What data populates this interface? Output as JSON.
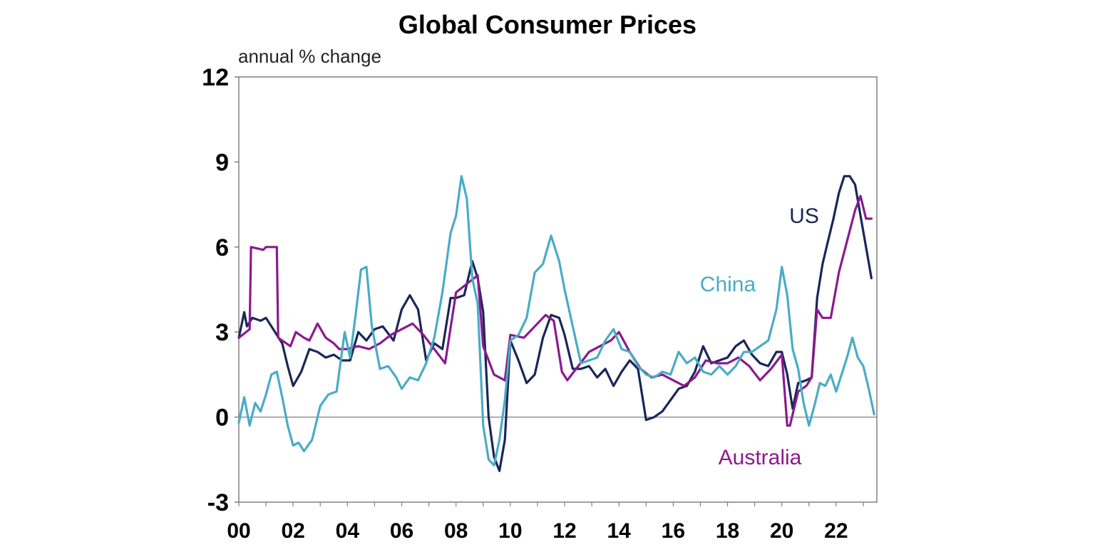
{
  "chart_data": {
    "type": "line",
    "title": "Global Consumer Prices",
    "ylabel": "annual % change",
    "xlabel": "",
    "ylim": [
      -3,
      12
    ],
    "xlim": [
      2000,
      2023.5
    ],
    "yticks": [
      12,
      9,
      6,
      3,
      0,
      -3
    ],
    "xticks": [
      {
        "year": 2000,
        "label": "00"
      },
      {
        "year": 2002,
        "label": "02"
      },
      {
        "year": 2004,
        "label": "04"
      },
      {
        "year": 2006,
        "label": "06"
      },
      {
        "year": 2008,
        "label": "08"
      },
      {
        "year": 2010,
        "label": "10"
      },
      {
        "year": 2012,
        "label": "12"
      },
      {
        "year": 2014,
        "label": "14"
      },
      {
        "year": 2016,
        "label": "16"
      },
      {
        "year": 2018,
        "label": "18"
      },
      {
        "year": 2020,
        "label": "20"
      },
      {
        "year": 2022,
        "label": "22"
      }
    ],
    "grid": false,
    "series": [
      {
        "name": "US",
        "label": "US",
        "color": "#1a2657",
        "x": [
          2000.0,
          2000.2,
          2000.3,
          2000.5,
          2000.8,
          2001.0,
          2001.2,
          2001.4,
          2001.6,
          2001.8,
          2002.0,
          2002.3,
          2002.6,
          2002.9,
          2003.2,
          2003.5,
          2003.8,
          2004.1,
          2004.4,
          2004.7,
          2005.0,
          2005.3,
          2005.7,
          2006.0,
          2006.3,
          2006.6,
          2006.9,
          2007.2,
          2007.5,
          2007.8,
          2008.0,
          2008.3,
          2008.6,
          2008.8,
          2009.0,
          2009.2,
          2009.4,
          2009.6,
          2009.8,
          2010.0,
          2010.3,
          2010.6,
          2010.9,
          2011.2,
          2011.5,
          2011.8,
          2012.0,
          2012.3,
          2012.6,
          2012.9,
          2013.2,
          2013.5,
          2013.8,
          2014.1,
          2014.4,
          2014.7,
          2015.0,
          2015.3,
          2015.6,
          2015.9,
          2016.2,
          2016.5,
          2016.8,
          2017.1,
          2017.4,
          2017.7,
          2018.0,
          2018.3,
          2018.6,
          2018.9,
          2019.2,
          2019.5,
          2019.8,
          2020.0,
          2020.2,
          2020.4,
          2020.6,
          2020.9,
          2021.1,
          2021.3,
          2021.5,
          2021.7,
          2021.9,
          2022.1,
          2022.3,
          2022.5,
          2022.7,
          2022.9,
          2023.1,
          2023.3
        ],
        "values": [
          2.8,
          3.7,
          3.2,
          3.5,
          3.4,
          3.5,
          3.2,
          2.9,
          2.6,
          1.8,
          1.1,
          1.6,
          2.4,
          2.3,
          2.1,
          2.2,
          2.0,
          2.0,
          3.0,
          2.7,
          3.1,
          3.2,
          2.7,
          3.8,
          4.3,
          3.8,
          2.0,
          2.6,
          2.4,
          4.2,
          4.2,
          4.3,
          5.5,
          4.9,
          3.7,
          0.0,
          -1.4,
          -1.9,
          -0.8,
          2.7,
          2.0,
          1.2,
          1.5,
          2.8,
          3.6,
          3.5,
          2.9,
          1.7,
          1.7,
          1.8,
          1.4,
          1.7,
          1.1,
          1.6,
          2.0,
          1.7,
          -0.1,
          0.0,
          0.2,
          0.6,
          1.0,
          1.1,
          1.6,
          2.5,
          1.9,
          2.0,
          2.1,
          2.5,
          2.7,
          2.2,
          1.9,
          1.8,
          2.3,
          2.3,
          1.5,
          0.3,
          1.2,
          1.3,
          1.4,
          4.2,
          5.4,
          6.2,
          7.0,
          7.9,
          8.5,
          8.5,
          8.2,
          7.1,
          6.0,
          4.9
        ]
      },
      {
        "name": "Australia",
        "label": "Australia",
        "color": "#8b1a8e",
        "x": [
          2000.0,
          2000.4,
          2000.45,
          2000.9,
          2001.0,
          2001.4,
          2001.45,
          2001.9,
          2002.1,
          2002.4,
          2002.6,
          2002.9,
          2003.2,
          2003.5,
          2003.7,
          2004.0,
          2004.4,
          2004.8,
          2005.2,
          2005.6,
          2006.0,
          2006.4,
          2006.8,
          2007.2,
          2007.6,
          2008.0,
          2008.4,
          2008.8,
          2009.0,
          2009.4,
          2009.8,
          2010.0,
          2010.5,
          2011.0,
          2011.3,
          2011.6,
          2011.9,
          2012.1,
          2012.5,
          2012.9,
          2013.3,
          2013.7,
          2014.0,
          2014.4,
          2014.8,
          2015.2,
          2015.6,
          2016.0,
          2016.4,
          2016.8,
          2017.2,
          2017.6,
          2018.0,
          2018.4,
          2018.8,
          2019.2,
          2019.6,
          2020.0,
          2020.2,
          2020.3,
          2020.6,
          2020.9,
          2021.1,
          2021.3,
          2021.5,
          2021.8,
          2022.1,
          2022.4,
          2022.7,
          2022.9,
          2023.1,
          2023.3
        ],
        "values": [
          2.8,
          3.1,
          6.0,
          5.9,
          6.0,
          6.0,
          2.8,
          2.5,
          3.0,
          2.8,
          2.7,
          3.3,
          2.8,
          2.6,
          2.4,
          2.4,
          2.5,
          2.4,
          2.6,
          2.9,
          3.1,
          3.3,
          2.9,
          2.4,
          1.9,
          4.4,
          4.7,
          5.0,
          2.5,
          1.5,
          1.3,
          2.9,
          2.8,
          3.3,
          3.6,
          3.4,
          1.6,
          1.3,
          1.8,
          2.3,
          2.5,
          2.7,
          3.0,
          2.3,
          1.7,
          1.4,
          1.5,
          1.3,
          1.1,
          1.4,
          2.0,
          1.9,
          1.9,
          2.1,
          1.8,
          1.3,
          1.7,
          2.2,
          -0.3,
          -0.3,
          0.9,
          1.1,
          1.4,
          3.8,
          3.5,
          3.5,
          5.1,
          6.2,
          7.3,
          7.8,
          7.0,
          7.0
        ]
      },
      {
        "name": "China",
        "label": "China",
        "color": "#4aacc6",
        "x": [
          2000.0,
          2000.2,
          2000.4,
          2000.6,
          2000.8,
          2001.0,
          2001.2,
          2001.4,
          2001.6,
          2001.8,
          2002.0,
          2002.2,
          2002.4,
          2002.7,
          2003.0,
          2003.3,
          2003.6,
          2003.9,
          2004.1,
          2004.3,
          2004.5,
          2004.7,
          2004.9,
          2005.2,
          2005.5,
          2005.8,
          2006.0,
          2006.3,
          2006.6,
          2006.9,
          2007.2,
          2007.5,
          2007.8,
          2008.0,
          2008.2,
          2008.4,
          2008.6,
          2008.8,
          2009.0,
          2009.2,
          2009.4,
          2009.6,
          2009.8,
          2010.0,
          2010.3,
          2010.6,
          2010.9,
          2011.2,
          2011.5,
          2011.8,
          2012.0,
          2012.3,
          2012.6,
          2012.9,
          2013.2,
          2013.5,
          2013.8,
          2014.1,
          2014.4,
          2014.7,
          2015.0,
          2015.3,
          2015.6,
          2015.9,
          2016.2,
          2016.5,
          2016.8,
          2017.1,
          2017.4,
          2017.7,
          2018.0,
          2018.3,
          2018.6,
          2018.9,
          2019.2,
          2019.5,
          2019.8,
          2020.0,
          2020.2,
          2020.4,
          2020.6,
          2020.8,
          2021.0,
          2021.2,
          2021.4,
          2021.6,
          2021.8,
          2022.0,
          2022.2,
          2022.4,
          2022.6,
          2022.8,
          2023.0,
          2023.2,
          2023.4
        ],
        "values": [
          -0.2,
          0.7,
          -0.3,
          0.5,
          0.2,
          0.8,
          1.5,
          1.6,
          0.7,
          -0.3,
          -1.0,
          -0.9,
          -1.2,
          -0.8,
          0.4,
          0.8,
          0.9,
          3.0,
          2.1,
          3.6,
          5.2,
          5.3,
          3.2,
          1.7,
          1.8,
          1.4,
          1.0,
          1.4,
          1.3,
          1.9,
          2.8,
          4.4,
          6.5,
          7.1,
          8.5,
          7.7,
          4.9,
          4.0,
          -0.3,
          -1.5,
          -1.7,
          -0.8,
          0.6,
          2.7,
          2.9,
          3.5,
          5.1,
          5.4,
          6.4,
          5.5,
          4.5,
          3.2,
          1.9,
          2.0,
          2.1,
          2.7,
          3.1,
          2.4,
          2.3,
          1.8,
          1.5,
          1.4,
          1.6,
          1.5,
          2.3,
          1.9,
          2.1,
          1.6,
          1.5,
          1.8,
          1.5,
          1.8,
          2.3,
          2.3,
          2.5,
          2.7,
          3.8,
          5.3,
          4.3,
          2.4,
          1.7,
          0.5,
          -0.3,
          0.4,
          1.2,
          1.1,
          1.5,
          0.9,
          1.5,
          2.1,
          2.8,
          2.1,
          1.8,
          1.0,
          0.1
        ]
      }
    ]
  }
}
